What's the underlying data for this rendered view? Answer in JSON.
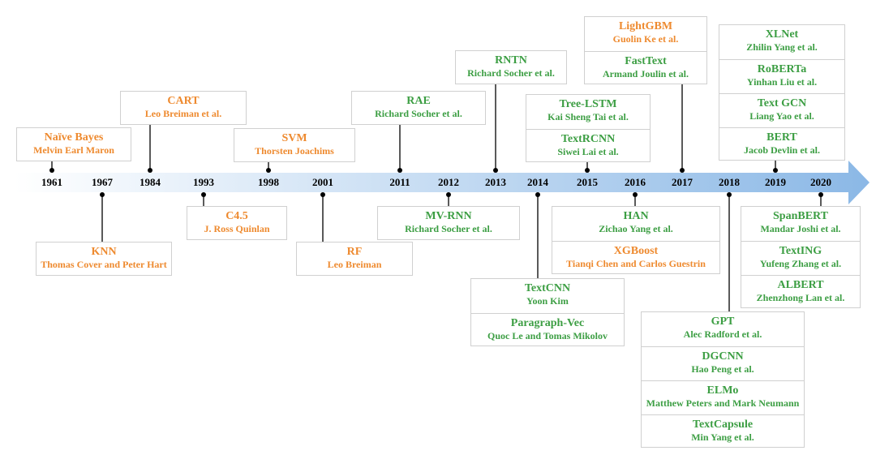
{
  "colors": {
    "statistical": "#ee8a2f",
    "deep_learning": "#3c9e43",
    "arrow_start": "#ffffff",
    "arrow_end": "#8bb8e6"
  },
  "years": [
    "1961",
    "1967",
    "1984",
    "1993",
    "1998",
    "2001",
    "2011",
    "2012",
    "2013",
    "2014",
    "2015",
    "2016",
    "2017",
    "2018",
    "2019",
    "2020"
  ],
  "groups": [
    {
      "year": "1961",
      "pos": "above",
      "color": "orange",
      "models": [
        {
          "name": "Naïve Bayes",
          "author": "Melvin Earl Maron"
        }
      ]
    },
    {
      "year": "1967",
      "pos": "below",
      "color": "orange",
      "models": [
        {
          "name": "KNN",
          "author": "Thomas Cover and Peter Hart"
        }
      ]
    },
    {
      "year": "1984",
      "pos": "above",
      "color": "orange",
      "models": [
        {
          "name": "CART",
          "author": "Leo Breiman et al."
        }
      ]
    },
    {
      "year": "1993",
      "pos": "below",
      "color": "orange",
      "models": [
        {
          "name": "C4.5",
          "author": "J. Ross Quinlan"
        }
      ]
    },
    {
      "year": "1998",
      "pos": "above",
      "color": "orange",
      "models": [
        {
          "name": "SVM",
          "author": "Thorsten Joachims"
        }
      ]
    },
    {
      "year": "2001",
      "pos": "below",
      "color": "orange",
      "models": [
        {
          "name": "RF",
          "author": "Leo Breiman"
        }
      ]
    },
    {
      "year": "2011",
      "pos": "above",
      "color": "green",
      "models": [
        {
          "name": "RAE",
          "author": "Richard Socher et al."
        }
      ]
    },
    {
      "year": "2012",
      "pos": "below",
      "color": "green",
      "models": [
        {
          "name": "MV-RNN",
          "author": "Richard Socher et al."
        }
      ]
    },
    {
      "year": "2013",
      "pos": "above",
      "color": "green",
      "models": [
        {
          "name": "RNTN",
          "author": "Richard Socher et al."
        }
      ]
    },
    {
      "year": "2014",
      "pos": "below",
      "color": "green",
      "models": [
        {
          "name": "TextCNN",
          "author": "Yoon Kim"
        },
        {
          "name": "Paragraph-Vec",
          "author": "Quoc Le and Tomas Mikolov"
        }
      ]
    },
    {
      "year": "2015",
      "pos": "above",
      "color": "green",
      "models": [
        {
          "name": "Tree-LSTM",
          "author": "Kai Sheng Tai et al."
        },
        {
          "name": "TextRCNN",
          "author": "Siwei Lai et al."
        }
      ]
    },
    {
      "year": "2016",
      "pos": "below",
      "color": "mixed",
      "models": [
        {
          "name": "HAN",
          "author": "Zichao Yang et al.",
          "color": "green"
        },
        {
          "name": "XGBoost",
          "author": "Tianqi Chen and Carlos Guestrin",
          "color": "orange"
        }
      ]
    },
    {
      "year": "2017",
      "pos": "above",
      "color": "mixed",
      "models": [
        {
          "name": "LightGBM",
          "author": "Guolin Ke et al.",
          "color": "orange"
        },
        {
          "name": "FastText",
          "author": "Armand Joulin et al.",
          "color": "green"
        }
      ]
    },
    {
      "year": "2018",
      "pos": "below",
      "color": "green",
      "models": [
        {
          "name": "GPT",
          "author": "Alec Radford et al."
        },
        {
          "name": "DGCNN",
          "author": "Hao Peng et al."
        },
        {
          "name": "ELMo",
          "author": "Matthew Peters and Mark Neumann"
        },
        {
          "name": "TextCapsule",
          "author": "Min Yang et al."
        }
      ]
    },
    {
      "year": "2019",
      "pos": "above",
      "color": "green",
      "models": [
        {
          "name": "XLNet",
          "author": "Zhilin Yang et al."
        },
        {
          "name": "RoBERTa",
          "author": "Yinhan Liu et al."
        },
        {
          "name": "Text GCN",
          "author": "Liang Yao et al."
        },
        {
          "name": "BERT",
          "author": "Jacob Devlin et al."
        }
      ]
    },
    {
      "year": "2020",
      "pos": "below",
      "color": "green",
      "models": [
        {
          "name": "SpanBERT",
          "author": "Mandar Joshi et al."
        },
        {
          "name": "TextING",
          "author": "Yufeng Zhang et al."
        },
        {
          "name": "ALBERT",
          "author": "Zhenzhong Lan et al."
        }
      ]
    }
  ]
}
